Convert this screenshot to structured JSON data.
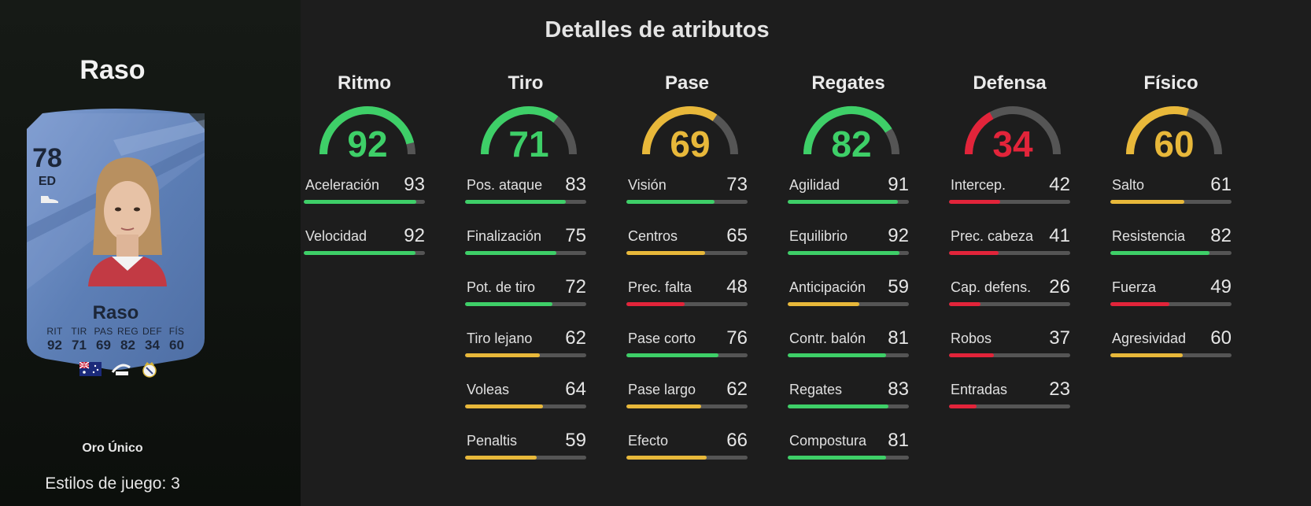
{
  "player": {
    "name": "Raso",
    "rating": "78",
    "position": "ED",
    "card_type": "Oro Único",
    "playstyles": "Estilos de juego: 3",
    "card_stats": [
      {
        "label": "RIT",
        "value": "92"
      },
      {
        "label": "TIR",
        "value": "71"
      },
      {
        "label": "PAS",
        "value": "69"
      },
      {
        "label": "REG",
        "value": "82"
      },
      {
        "label": "DEF",
        "value": "34"
      },
      {
        "label": "FÍS",
        "value": "60"
      }
    ]
  },
  "section_title": "Detalles de atributos",
  "colors": {
    "green": "#3ecf68",
    "yellow": "#e8b83a",
    "red": "#e2243a",
    "track": "#555555",
    "card": "#5c7db4"
  },
  "categories": [
    {
      "name": "Ritmo",
      "value": "92",
      "color": "#3ecf68",
      "fill": 0.92,
      "attributes": [
        {
          "label": "Aceleración",
          "value": "93",
          "color": "#3ecf68",
          "fill": 0.93
        },
        {
          "label": "Velocidad",
          "value": "92",
          "color": "#3ecf68",
          "fill": 0.92
        }
      ]
    },
    {
      "name": "Tiro",
      "value": "71",
      "color": "#3ecf68",
      "fill": 0.71,
      "attributes": [
        {
          "label": "Pos. ataque",
          "value": "83",
          "color": "#3ecf68",
          "fill": 0.83
        },
        {
          "label": "Finalización",
          "value": "75",
          "color": "#3ecf68",
          "fill": 0.75
        },
        {
          "label": "Pot. de tiro",
          "value": "72",
          "color": "#3ecf68",
          "fill": 0.72
        },
        {
          "label": "Tiro lejano",
          "value": "62",
          "color": "#e8b83a",
          "fill": 0.62
        },
        {
          "label": "Voleas",
          "value": "64",
          "color": "#e8b83a",
          "fill": 0.64
        },
        {
          "label": "Penaltis",
          "value": "59",
          "color": "#e8b83a",
          "fill": 0.59
        }
      ]
    },
    {
      "name": "Pase",
      "value": "69",
      "color": "#e8b83a",
      "fill": 0.69,
      "attributes": [
        {
          "label": "Visión",
          "value": "73",
          "color": "#3ecf68",
          "fill": 0.73
        },
        {
          "label": "Centros",
          "value": "65",
          "color": "#e8b83a",
          "fill": 0.65
        },
        {
          "label": "Prec. falta",
          "value": "48",
          "color": "#e2243a",
          "fill": 0.48
        },
        {
          "label": "Pase corto",
          "value": "76",
          "color": "#3ecf68",
          "fill": 0.76
        },
        {
          "label": "Pase largo",
          "value": "62",
          "color": "#e8b83a",
          "fill": 0.62
        },
        {
          "label": "Efecto",
          "value": "66",
          "color": "#e8b83a",
          "fill": 0.66
        }
      ]
    },
    {
      "name": "Regates",
      "value": "82",
      "color": "#3ecf68",
      "fill": 0.82,
      "attributes": [
        {
          "label": "Agilidad",
          "value": "91",
          "color": "#3ecf68",
          "fill": 0.91
        },
        {
          "label": "Equilibrio",
          "value": "92",
          "color": "#3ecf68",
          "fill": 0.92
        },
        {
          "label": "Anticipación",
          "value": "59",
          "color": "#e8b83a",
          "fill": 0.59
        },
        {
          "label": "Contr. balón",
          "value": "81",
          "color": "#3ecf68",
          "fill": 0.81
        },
        {
          "label": "Regates",
          "value": "83",
          "color": "#3ecf68",
          "fill": 0.83
        },
        {
          "label": "Compostura",
          "value": "81",
          "color": "#3ecf68",
          "fill": 0.81
        }
      ]
    },
    {
      "name": "Defensa",
      "value": "34",
      "color": "#e2243a",
      "fill": 0.34,
      "attributes": [
        {
          "label": "Intercep.",
          "value": "42",
          "color": "#e2243a",
          "fill": 0.42
        },
        {
          "label": "Prec. cabeza",
          "value": "41",
          "color": "#e2243a",
          "fill": 0.41
        },
        {
          "label": "Cap. defens.",
          "value": "26",
          "color": "#e2243a",
          "fill": 0.26
        },
        {
          "label": "Robos",
          "value": "37",
          "color": "#e2243a",
          "fill": 0.37
        },
        {
          "label": "Entradas",
          "value": "23",
          "color": "#e2243a",
          "fill": 0.23
        }
      ]
    },
    {
      "name": "Físico",
      "value": "60",
      "color": "#e8b83a",
      "fill": 0.6,
      "attributes": [
        {
          "label": "Salto",
          "value": "61",
          "color": "#e8b83a",
          "fill": 0.61
        },
        {
          "label": "Resistencia",
          "value": "82",
          "color": "#3ecf68",
          "fill": 0.82
        },
        {
          "label": "Fuerza",
          "value": "49",
          "color": "#e2243a",
          "fill": 0.49
        },
        {
          "label": "Agresividad",
          "value": "60",
          "color": "#e8b83a",
          "fill": 0.6
        }
      ]
    }
  ]
}
